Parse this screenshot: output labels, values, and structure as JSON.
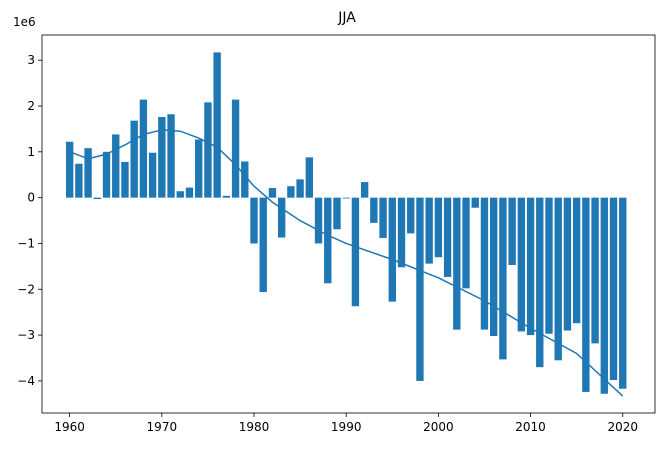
{
  "chart_data": {
    "type": "bar",
    "title": "JJA",
    "offset_label": "1e6",
    "xlabel": "",
    "ylabel": "",
    "xlim": [
      1957,
      2023.5
    ],
    "ylim": [
      -4.7,
      3.55
    ],
    "xticks": [
      1960,
      1970,
      1980,
      1990,
      2000,
      2010,
      2020
    ],
    "yticks": [
      -4,
      -3,
      -2,
      -1,
      0,
      1,
      2,
      3
    ],
    "x": [
      1960,
      1961,
      1962,
      1963,
      1964,
      1965,
      1966,
      1967,
      1968,
      1969,
      1970,
      1971,
      1972,
      1973,
      1974,
      1975,
      1976,
      1977,
      1978,
      1979,
      1980,
      1981,
      1982,
      1983,
      1984,
      1985,
      1986,
      1987,
      1988,
      1989,
      1990,
      1991,
      1992,
      1993,
      1994,
      1995,
      1996,
      1997,
      1998,
      1999,
      2000,
      2001,
      2002,
      2003,
      2004,
      2005,
      2006,
      2007,
      2008,
      2009,
      2010,
      2011,
      2012,
      2013,
      2014,
      2015,
      2016,
      2017,
      2018,
      2019,
      2020
    ],
    "values": [
      1.22,
      0.74,
      1.08,
      -0.03,
      1.0,
      1.38,
      0.78,
      1.68,
      2.14,
      0.98,
      1.76,
      1.82,
      0.14,
      0.22,
      1.27,
      2.08,
      3.17,
      0.04,
      2.14,
      0.79,
      -1.0,
      -2.06,
      0.21,
      -0.87,
      0.25,
      0.4,
      0.88,
      -1.0,
      -1.87,
      -0.69,
      0.0,
      -2.37,
      0.34,
      -0.55,
      -0.88,
      -2.27,
      -1.52,
      -0.78,
      -4.0,
      -1.44,
      -1.3,
      -1.73,
      -2.88,
      -1.98,
      -0.22,
      -2.88,
      -3.02,
      -3.53,
      -1.47,
      -2.92,
      -3.0,
      -3.7,
      -2.97,
      -3.55,
      -2.9,
      -2.74,
      -4.24,
      -3.18,
      -4.28,
      -3.98,
      -4.17
    ],
    "trend": {
      "x": [
        1960,
        1962,
        1964,
        1966,
        1968,
        1970,
        1972,
        1974,
        1976,
        1978,
        1980,
        1982,
        1985,
        1988,
        1990,
        1995,
        2000,
        2005,
        2010,
        2015,
        2020
      ],
      "y": [
        1.0,
        0.85,
        0.95,
        1.15,
        1.38,
        1.48,
        1.45,
        1.3,
        1.1,
        0.72,
        0.25,
        -0.1,
        -0.5,
        -0.82,
        -1.0,
        -1.35,
        -1.75,
        -2.25,
        -2.85,
        -3.4,
        -4.33
      ]
    },
    "grid": false,
    "colors": {
      "bar": "#1f77b4",
      "line": "#1f77b4",
      "axis": "#000000"
    }
  }
}
